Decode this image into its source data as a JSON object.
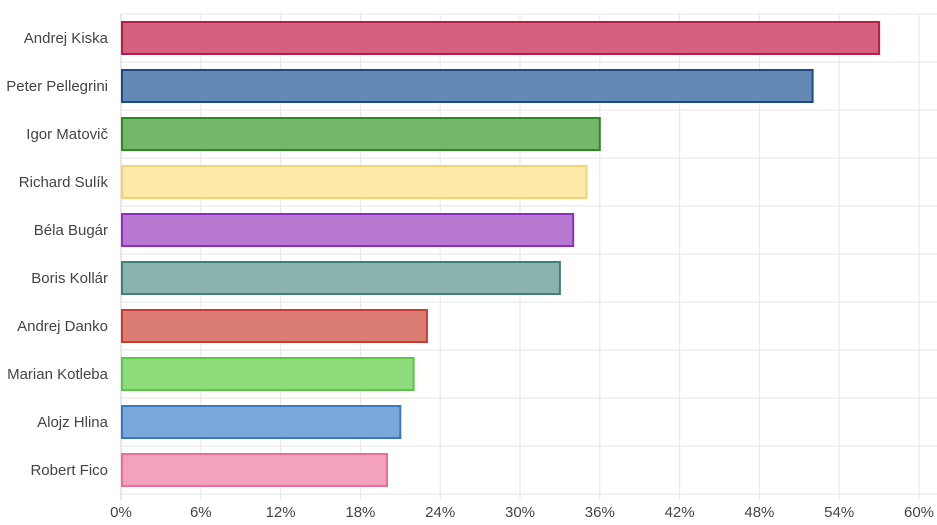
{
  "chart_data": {
    "type": "bar",
    "orientation": "horizontal",
    "categories": [
      "Andrej Kiska",
      "Peter Pellegrini",
      "Igor Matovič",
      "Richard Sulík",
      "Béla Bugár",
      "Boris Kollár",
      "Andrej Danko",
      "Marian Kotleba",
      "Alojz Hlina",
      "Robert Fico"
    ],
    "values": [
      57,
      52,
      36,
      35,
      34,
      33,
      23,
      22,
      21,
      20
    ],
    "bar_colors": [
      {
        "fill": "#d5607f",
        "stroke": "#b51e45"
      },
      {
        "fill": "#6489b6",
        "stroke": "#1e4a82"
      },
      {
        "fill": "#75b669",
        "stroke": "#2c8a23"
      },
      {
        "fill": "#fde9a9",
        "stroke": "#f5d372"
      },
      {
        "fill": "#b678d1",
        "stroke": "#8e2fb8"
      },
      {
        "fill": "#8ab3ad",
        "stroke": "#3f8177"
      },
      {
        "fill": "#dc7d74",
        "stroke": "#c73b31"
      },
      {
        "fill": "#8fdc7c",
        "stroke": "#5cc646"
      },
      {
        "fill": "#7aa6d9",
        "stroke": "#3977c4"
      },
      {
        "fill": "#f4a1bd",
        "stroke": "#ec6e98"
      }
    ],
    "x_ticks": [
      "0%",
      "6%",
      "12%",
      "18%",
      "24%",
      "30%",
      "36%",
      "42%",
      "48%",
      "54%",
      "60%"
    ],
    "xlim": [
      0,
      60
    ],
    "title": "",
    "xlabel": "",
    "ylabel": "",
    "grid": true,
    "legend": "none"
  }
}
